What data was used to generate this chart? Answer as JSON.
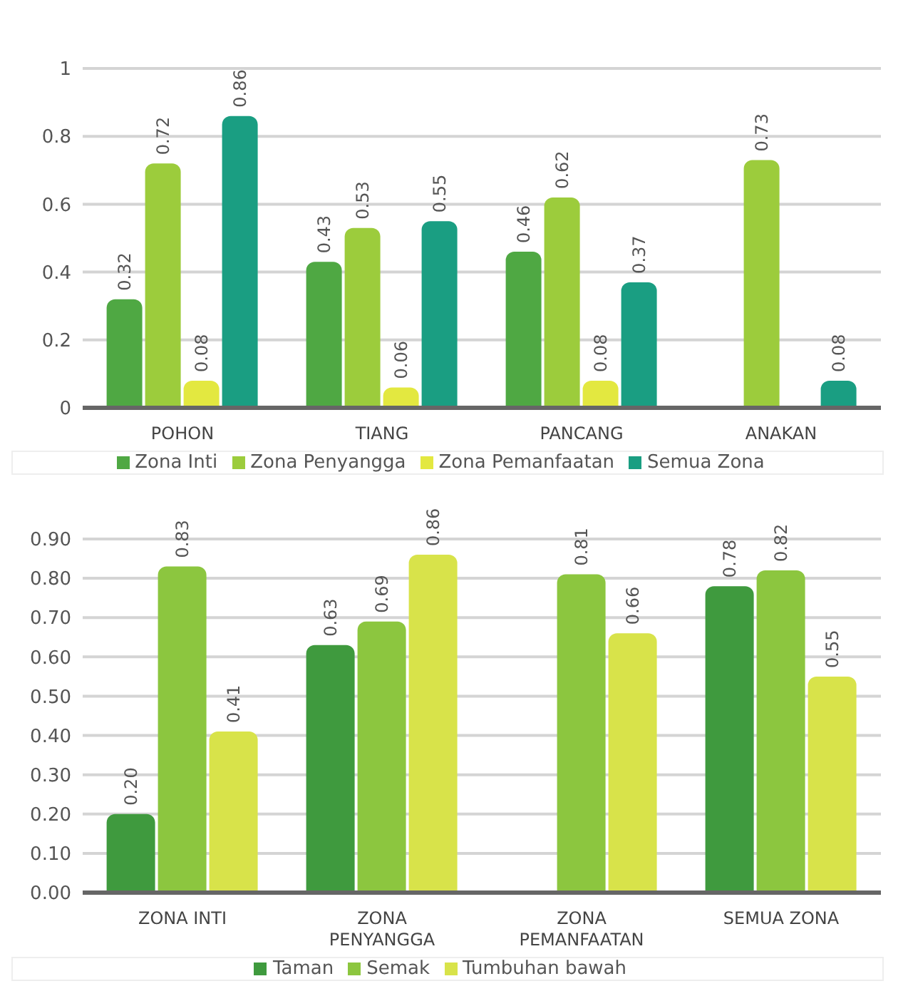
{
  "chart_data": [
    {
      "type": "bar",
      "categories": [
        "POHON",
        "TIANG",
        "PANCANG",
        "ANAKAN"
      ],
      "series": [
        {
          "name": "Zona Inti",
          "color": "#4fa843",
          "values": [
            0.32,
            0.43,
            0.46,
            0
          ],
          "value_labels": [
            "0.32",
            "0.43",
            "0.46",
            null
          ]
        },
        {
          "name": "Zona Penyangga",
          "color": "#9ccc3c",
          "values": [
            0.72,
            0.53,
            0.62,
            0.73
          ],
          "value_labels": [
            "0.72",
            "0.53",
            "0.62",
            "0.73"
          ]
        },
        {
          "name": "Zona Pemanfaatan",
          "color": "#e3e840",
          "values": [
            0.08,
            0.06,
            0.08,
            0
          ],
          "value_labels": [
            "0.08",
            "0.06",
            "0.08",
            null
          ]
        },
        {
          "name": "Semua Zona",
          "color": "#1a9e82",
          "values": [
            0.86,
            0.55,
            0.37,
            0.08
          ],
          "value_labels": [
            "0.86",
            "0.55",
            "0.37",
            "0.08"
          ]
        }
      ],
      "ylim": [
        0,
        1
      ],
      "yticks": [
        0,
        0.2,
        0.4,
        0.6,
        0.8,
        1
      ],
      "grid": "y",
      "legend": "bottom"
    },
    {
      "type": "bar",
      "categories": [
        "ZONA INTI",
        "ZONA PENYANGGA",
        "ZONA PEMANFAATAN",
        "SEMUA ZONA"
      ],
      "series": [
        {
          "name": "Taman",
          "color": "#3f9a3e",
          "values": [
            0.2,
            0.63,
            0,
            0.78
          ],
          "value_labels": [
            "0.20",
            "0.63",
            null,
            "0.78"
          ]
        },
        {
          "name": "Semak",
          "color": "#8cc63f",
          "values": [
            0.83,
            0.69,
            0.81,
            0.82
          ],
          "value_labels": [
            "0.83",
            "0.69",
            "0.81",
            "0.82"
          ]
        },
        {
          "name": "Tumbuhan bawah",
          "color": "#d8e34a",
          "values": [
            0.41,
            0.86,
            0.66,
            0.55
          ],
          "value_labels": [
            "0.41",
            "0.86",
            "0.66",
            "0.55"
          ]
        }
      ],
      "ylim": [
        0,
        0.9
      ],
      "yticks": [
        {
          "value": 0,
          "label": "0.00"
        },
        {
          "value": 0.1,
          "label": "0.10"
        },
        {
          "value": 0.2,
          "label": "0.20"
        },
        {
          "value": 0.3,
          "label": "0.30"
        },
        {
          "value": 0.4,
          "label": "0.40"
        },
        {
          "value": 0.5,
          "label": "0.50"
        },
        {
          "value": 0.6,
          "label": "0.60"
        },
        {
          "value": 0.7,
          "label": "0.70"
        },
        {
          "value": 0.8,
          "label": "0.80"
        },
        {
          "value": 0.9,
          "label": "0.90"
        }
      ],
      "grid": "y",
      "legend": "bottom"
    }
  ]
}
